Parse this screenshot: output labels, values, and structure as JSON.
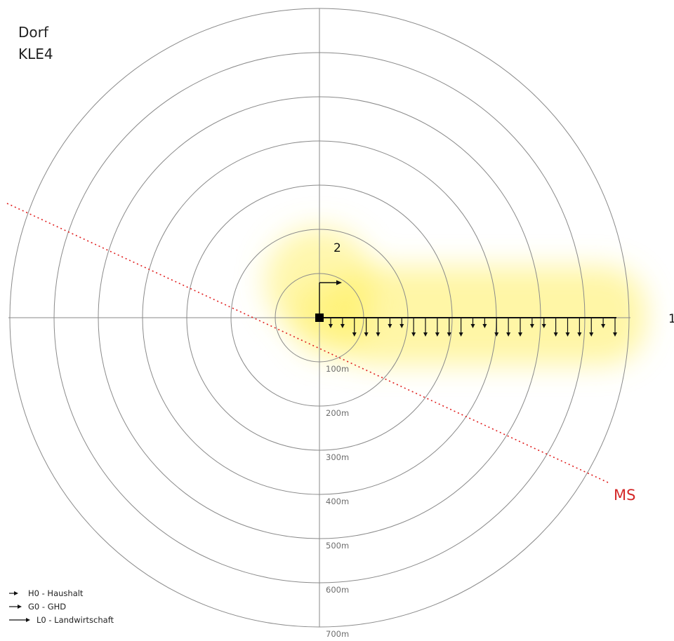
{
  "title": {
    "line1": "Dorf",
    "line2": "KLE4"
  },
  "rings": [
    "100m",
    "200m",
    "300m",
    "400m",
    "500m",
    "600m",
    "700m"
  ],
  "feeder_labels": {
    "feeder_1": "1",
    "feeder_2": "2"
  },
  "mv_line_label": "MS",
  "colors": {
    "ring": "#8a8a8a",
    "mv_line": "#e02020",
    "mv_label": "#d42828",
    "glow": "#fff06a",
    "feeder": "#111111"
  },
  "legend": [
    {
      "type": "H0",
      "label": "H0 - Haushalt"
    },
    {
      "type": "G0",
      "label": "G0 - GHD"
    },
    {
      "type": "L0",
      "label": "L0 - Landwirtschaft"
    }
  ],
  "loads": [
    {
      "type": "H0"
    },
    {
      "type": "H0"
    },
    {
      "type": "G0"
    },
    {
      "type": "G0"
    },
    {
      "type": "G0"
    },
    {
      "type": "H0"
    },
    {
      "type": "H0"
    },
    {
      "type": "G0"
    },
    {
      "type": "G0"
    },
    {
      "type": "G0"
    },
    {
      "type": "G0"
    },
    {
      "type": "G0"
    },
    {
      "type": "H0"
    },
    {
      "type": "H0"
    },
    {
      "type": "G0"
    },
    {
      "type": "G0"
    },
    {
      "type": "G0"
    },
    {
      "type": "H0"
    },
    {
      "type": "H0"
    },
    {
      "type": "G0"
    },
    {
      "type": "G0"
    },
    {
      "type": "G0"
    },
    {
      "type": "G0"
    },
    {
      "type": "H0"
    },
    {
      "type": "G0"
    }
  ]
}
